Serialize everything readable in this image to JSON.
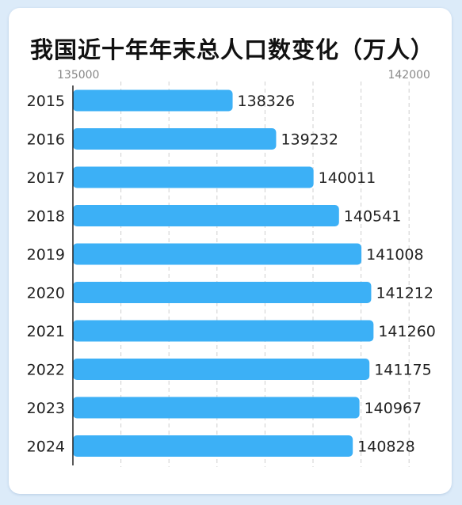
{
  "colors": {
    "bar": "#3cb0f6",
    "grid": "#cfcfcf",
    "axis": "#222222"
  },
  "chart_data": {
    "type": "bar",
    "orientation": "horizontal",
    "title": "我国近十年年末总人口数变化（万人）",
    "categories": [
      "2015",
      "2016",
      "2017",
      "2018",
      "2019",
      "2020",
      "2021",
      "2022",
      "2023",
      "2024"
    ],
    "values": [
      138326,
      139232,
      140011,
      140541,
      141008,
      141212,
      141260,
      141175,
      140967,
      140828
    ],
    "xlim": [
      135000,
      142000
    ],
    "x_tick_labels": [
      "135000",
      "142000"
    ],
    "grid": true,
    "data_labels": true
  }
}
